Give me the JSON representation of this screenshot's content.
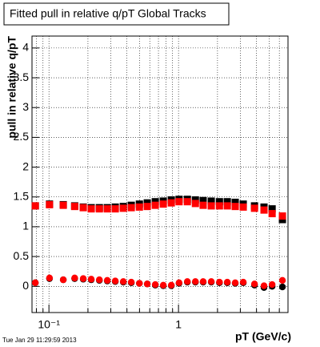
{
  "chart_data": {
    "type": "scatter",
    "title": "Fitted pull in relative q/pT  Global Tracks",
    "y_label": "pull in relative q/pT",
    "x_label": "pT (GeV/c)",
    "timestamp": "Tue Jan 29 11:29:59 2013",
    "x_log": true,
    "grid": true,
    "xlim": [
      0.074,
      7.0
    ],
    "ylim": [
      -0.44,
      4.2
    ],
    "xticks": [
      {
        "value": 0.1,
        "label": "10⁻¹"
      },
      1
    ],
    "xminorticks": [
      0.08,
      0.09,
      0.2,
      0.3,
      0.4,
      0.5,
      0.6,
      0.7,
      0.8,
      0.9,
      2,
      3,
      4,
      5,
      6
    ],
    "yticks": [
      0,
      0.5,
      1,
      1.5,
      2,
      2.5,
      3,
      3.5,
      4
    ],
    "x": [
      0.0785,
      0.101,
      0.129,
      0.158,
      0.184,
      0.212,
      0.245,
      0.282,
      0.325,
      0.375,
      0.432,
      0.499,
      0.574,
      0.662,
      0.763,
      0.88,
      1.01,
      1.17,
      1.35,
      1.55,
      1.79,
      2.07,
      2.38,
      2.74,
      3.16,
      3.86,
      4.57,
      5.28,
      6.34
    ],
    "series": [
      {
        "color": "#000000",
        "marker": "square",
        "values": [
          1.35,
          1.38,
          1.37,
          1.35,
          1.33,
          1.32,
          1.32,
          1.32,
          1.33,
          1.34,
          1.36,
          1.38,
          1.4,
          1.42,
          1.43,
          1.45,
          1.46,
          1.46,
          1.45,
          1.44,
          1.43,
          1.42,
          1.42,
          1.41,
          1.38,
          1.35,
          1.33,
          1.3,
          1.12
        ]
      },
      {
        "color": "#ff0000",
        "marker": "square",
        "values": [
          1.35,
          1.37,
          1.36,
          1.34,
          1.32,
          1.3,
          1.3,
          1.3,
          1.3,
          1.31,
          1.32,
          1.33,
          1.34,
          1.36,
          1.38,
          1.4,
          1.42,
          1.42,
          1.39,
          1.36,
          1.35,
          1.35,
          1.35,
          1.34,
          1.33,
          1.31,
          1.28,
          1.22,
          1.18
        ]
      },
      {
        "color": "#000000",
        "marker": "circle",
        "values": [
          0.06,
          0.13,
          0.11,
          0.13,
          0.12,
          0.11,
          0.1,
          0.09,
          0.08,
          0.07,
          0.06,
          0.05,
          0.04,
          0.02,
          0.01,
          0.01,
          0.05,
          0.07,
          0.07,
          0.07,
          0.07,
          0.06,
          0.06,
          0.05,
          0.06,
          0.02,
          -0.02,
          0.0,
          -0.01
        ]
      },
      {
        "color": "#ff0000",
        "marker": "circle",
        "values": [
          0.06,
          0.14,
          0.11,
          0.14,
          0.13,
          0.12,
          0.11,
          0.1,
          0.09,
          0.08,
          0.07,
          0.05,
          0.04,
          0.03,
          0.02,
          0.02,
          0.06,
          0.08,
          0.08,
          0.08,
          0.08,
          0.07,
          0.07,
          0.06,
          0.07,
          0.04,
          0.01,
          0.03,
          0.1
        ]
      }
    ]
  }
}
